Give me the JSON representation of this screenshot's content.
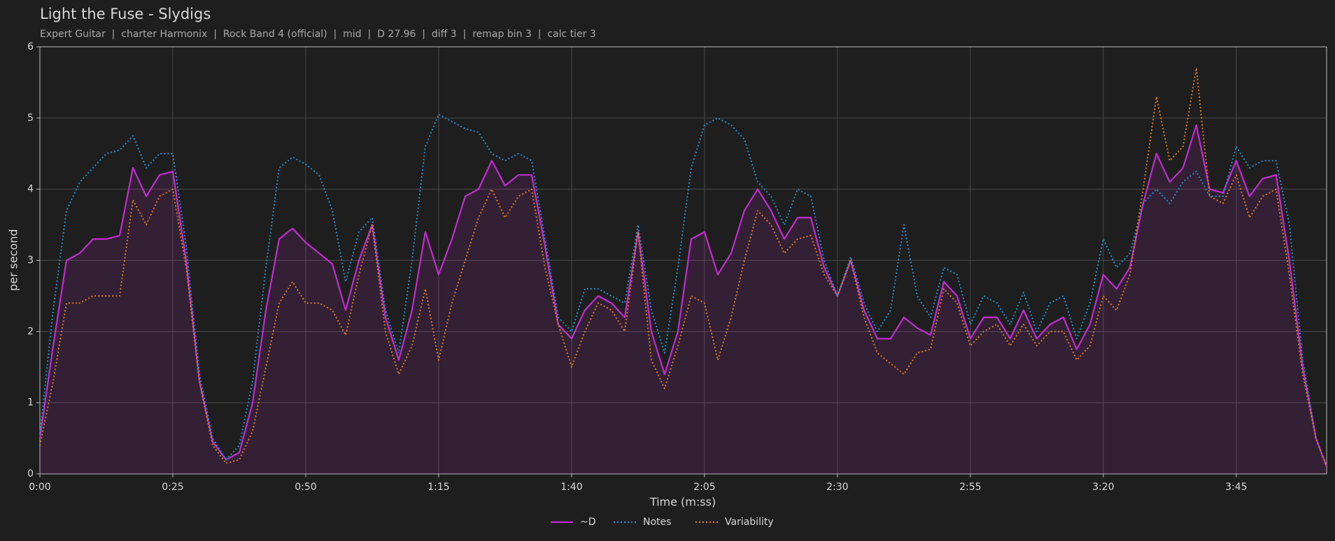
{
  "chart_data": {
    "type": "line",
    "title": "Light the Fuse - Slydigs",
    "subtitle": "Expert Guitar  |  charter Harmonix  |  Rock Band 4 (official)  |  mid  |  D 27.96  |  diff 3  |  remap bin 3  |  calc tier 3",
    "xlabel": "Time (m:ss)",
    "ylabel": "per second",
    "x": [
      0,
      2.5,
      5,
      7.5,
      10,
      12.5,
      15,
      17.5,
      20,
      22.5,
      25,
      27.5,
      30,
      32.5,
      35,
      37.5,
      40,
      42.5,
      45,
      47.5,
      50,
      52.5,
      55,
      57.5,
      60,
      62.5,
      65,
      67.5,
      70,
      72.5,
      75,
      77.5,
      80,
      82.5,
      85,
      87.5,
      90,
      92.5,
      95,
      97.5,
      100,
      102.5,
      105,
      107.5,
      110,
      112.5,
      115,
      117.5,
      120,
      122.5,
      125,
      127.5,
      130,
      132.5,
      135,
      137.5,
      140,
      142.5,
      145,
      147.5,
      150,
      152.5,
      155,
      157.5,
      160,
      162.5,
      165,
      167.5,
      170,
      172.5,
      175,
      177.5,
      180,
      182.5,
      185,
      187.5,
      190,
      192.5,
      195,
      197.5,
      200,
      202.5,
      205,
      207.5,
      210,
      212.5,
      215,
      217.5,
      220,
      222.5,
      225,
      227.5,
      230,
      232.5,
      235,
      237.5,
      240,
      242
    ],
    "series": [
      {
        "name": "~D",
        "color": "#c22bd0",
        "style": "solid",
        "fill": true,
        "values": [
          0.5,
          1.8,
          3.0,
          3.1,
          3.3,
          3.3,
          3.35,
          4.3,
          3.9,
          4.2,
          4.25,
          3.0,
          1.3,
          0.45,
          0.2,
          0.3,
          1.0,
          2.3,
          3.3,
          3.45,
          3.25,
          3.1,
          2.95,
          2.3,
          3.0,
          3.5,
          2.2,
          1.6,
          2.3,
          3.4,
          2.8,
          3.3,
          3.9,
          4.0,
          4.4,
          4.05,
          4.2,
          4.2,
          3.2,
          2.1,
          1.9,
          2.3,
          2.5,
          2.4,
          2.2,
          3.4,
          2.0,
          1.4,
          2.0,
          3.3,
          3.4,
          2.8,
          3.1,
          3.7,
          4.0,
          3.7,
          3.3,
          3.6,
          3.6,
          2.9,
          2.5,
          3.0,
          2.3,
          1.9,
          1.9,
          2.2,
          2.05,
          1.95,
          2.7,
          2.5,
          1.9,
          2.2,
          2.2,
          1.9,
          2.3,
          1.9,
          2.1,
          2.2,
          1.75,
          2.1,
          2.8,
          2.6,
          2.9,
          3.8,
          4.5,
          4.1,
          4.3,
          4.9,
          4.0,
          3.95,
          4.4,
          3.9,
          4.15,
          4.2,
          3.0,
          1.5,
          0.5,
          0.1
        ]
      },
      {
        "name": "Notes",
        "color": "#1f8fd0",
        "style": "dotted",
        "values": [
          0.55,
          2.3,
          3.7,
          4.1,
          4.3,
          4.5,
          4.55,
          4.75,
          4.3,
          4.5,
          4.5,
          3.2,
          1.4,
          0.5,
          0.2,
          0.4,
          1.3,
          2.9,
          4.3,
          4.45,
          4.35,
          4.2,
          3.7,
          2.7,
          3.4,
          3.6,
          2.3,
          1.7,
          3.0,
          4.6,
          5.05,
          4.95,
          4.85,
          4.8,
          4.5,
          4.4,
          4.5,
          4.4,
          3.3,
          2.2,
          2.0,
          2.6,
          2.6,
          2.5,
          2.4,
          3.5,
          2.3,
          1.7,
          2.9,
          4.3,
          4.9,
          5.0,
          4.9,
          4.7,
          4.1,
          3.9,
          3.5,
          4.0,
          3.9,
          3.0,
          2.5,
          3.05,
          2.4,
          2.0,
          2.3,
          3.5,
          2.5,
          2.2,
          2.9,
          2.8,
          2.1,
          2.5,
          2.4,
          2.1,
          2.55,
          2.0,
          2.4,
          2.5,
          1.9,
          2.4,
          3.3,
          2.9,
          3.1,
          3.8,
          4.0,
          3.8,
          4.1,
          4.25,
          3.9,
          3.9,
          4.6,
          4.3,
          4.4,
          4.4,
          3.5,
          1.6,
          0.5,
          0.1
        ]
      },
      {
        "name": "Variability",
        "color": "#e07b1a",
        "style": "dotted",
        "values": [
          0.4,
          1.3,
          2.4,
          2.4,
          2.5,
          2.5,
          2.5,
          3.85,
          3.5,
          3.9,
          4.0,
          2.9,
          1.3,
          0.4,
          0.15,
          0.2,
          0.6,
          1.5,
          2.4,
          2.7,
          2.4,
          2.4,
          2.3,
          1.95,
          2.8,
          3.5,
          2.0,
          1.4,
          1.8,
          2.6,
          1.6,
          2.4,
          3.0,
          3.6,
          4.0,
          3.6,
          3.9,
          4.0,
          2.9,
          2.1,
          1.5,
          2.0,
          2.4,
          2.3,
          2.0,
          3.4,
          1.6,
          1.2,
          1.8,
          2.5,
          2.4,
          1.6,
          2.2,
          3.0,
          3.7,
          3.5,
          3.1,
          3.3,
          3.35,
          2.8,
          2.5,
          3.0,
          2.2,
          1.7,
          1.55,
          1.4,
          1.7,
          1.75,
          2.6,
          2.4,
          1.8,
          2.0,
          2.1,
          1.8,
          2.1,
          1.8,
          2.0,
          2.0,
          1.6,
          1.8,
          2.5,
          2.3,
          2.8,
          4.0,
          5.3,
          4.4,
          4.6,
          5.7,
          3.9,
          3.8,
          4.2,
          3.6,
          3.9,
          4.0,
          2.8,
          1.4,
          0.5,
          0.1
        ]
      }
    ],
    "xlim": [
      0,
      242
    ],
    "xticks": [
      {
        "value": 0,
        "label": "0:00"
      },
      {
        "value": 25,
        "label": "0:25"
      },
      {
        "value": 50,
        "label": "0:50"
      },
      {
        "value": 75,
        "label": "1:15"
      },
      {
        "value": 100,
        "label": "1:40"
      },
      {
        "value": 125,
        "label": "2:05"
      },
      {
        "value": 150,
        "label": "2:30"
      },
      {
        "value": 175,
        "label": "2:55"
      },
      {
        "value": 200,
        "label": "3:20"
      },
      {
        "value": 225,
        "label": "3:45"
      }
    ],
    "ylim": [
      0,
      6
    ],
    "yticks": [
      0,
      1,
      2,
      3,
      4,
      5,
      6
    ],
    "grid": true,
    "legend": "bottom"
  }
}
